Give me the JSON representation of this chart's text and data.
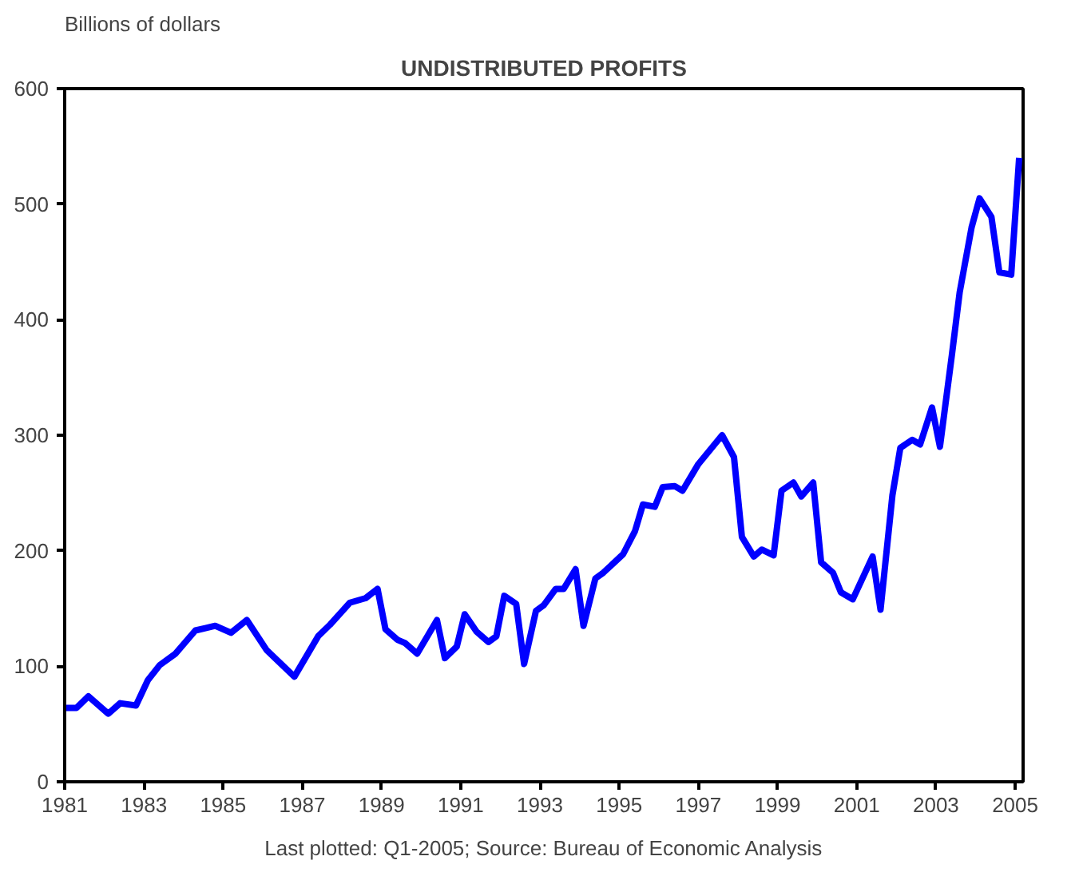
{
  "chart_data": {
    "type": "line",
    "title": "UNDISTRIBUTED PROFITS",
    "ylabel": "Billions of dollars",
    "annotations": [
      "Last plotted: Q1-2005; Source: Bureau of Economic Analysis"
    ],
    "x": [
      1981.0,
      1981.3,
      1981.6,
      1982.1,
      1982.4,
      1982.8,
      1983.1,
      1983.4,
      1983.8,
      1984.3,
      1984.8,
      1985.2,
      1985.6,
      1986.1,
      1986.8,
      1987.4,
      1987.7,
      1988.2,
      1988.6,
      1988.9,
      1989.1,
      1989.4,
      1989.6,
      1989.9,
      1990.4,
      1990.6,
      1990.9,
      1991.1,
      1991.4,
      1991.7,
      1991.9,
      1992.1,
      1992.4,
      1992.6,
      1992.9,
      1993.1,
      1993.4,
      1993.6,
      1993.9,
      1994.1,
      1994.4,
      1994.6,
      1995.1,
      1995.4,
      1995.6,
      1995.9,
      1996.1,
      1996.4,
      1996.6,
      1997.0,
      1997.6,
      1997.9,
      1998.1,
      1998.4,
      1998.6,
      1998.9,
      1999.1,
      1999.4,
      1999.6,
      1999.9,
      2000.1,
      2000.4,
      2000.6,
      2000.9,
      2001.4,
      2001.6,
      2001.9,
      2002.1,
      2002.4,
      2002.6,
      2002.9,
      2003.1,
      2003.4,
      2003.6,
      2003.9,
      2004.1,
      2004.4,
      2004.6,
      2004.9,
      2005.1
    ],
    "series": [
      {
        "color": "#0000ff",
        "values": [
          64,
          64,
          74,
          59,
          68,
          66,
          88,
          101,
          111,
          131,
          135,
          129,
          140,
          114,
          91,
          126,
          136,
          155,
          159,
          167,
          132,
          123,
          120,
          111,
          140,
          107,
          117,
          145,
          130,
          121,
          126,
          161,
          154,
          102,
          148,
          153,
          167,
          167,
          184,
          135,
          176,
          181,
          197,
          217,
          240,
          238,
          255,
          256,
          252,
          275,
          300,
          281,
          212,
          195,
          201,
          196,
          252,
          259,
          247,
          259,
          190,
          181,
          164,
          158,
          195,
          149,
          248,
          289,
          296,
          292,
          324,
          290,
          369,
          424,
          480,
          505,
          489,
          441,
          439,
          540
        ]
      }
    ],
    "xlim": [
      1981,
      2005.2
    ],
    "xticks": [
      1981,
      1983,
      1985,
      1987,
      1989,
      1991,
      1993,
      1995,
      1997,
      1999,
      2001,
      2003,
      2005
    ],
    "ylim": [
      0,
      600
    ],
    "yticks": [
      0,
      100,
      200,
      300,
      400,
      500,
      600
    ],
    "line_style": "solid"
  }
}
